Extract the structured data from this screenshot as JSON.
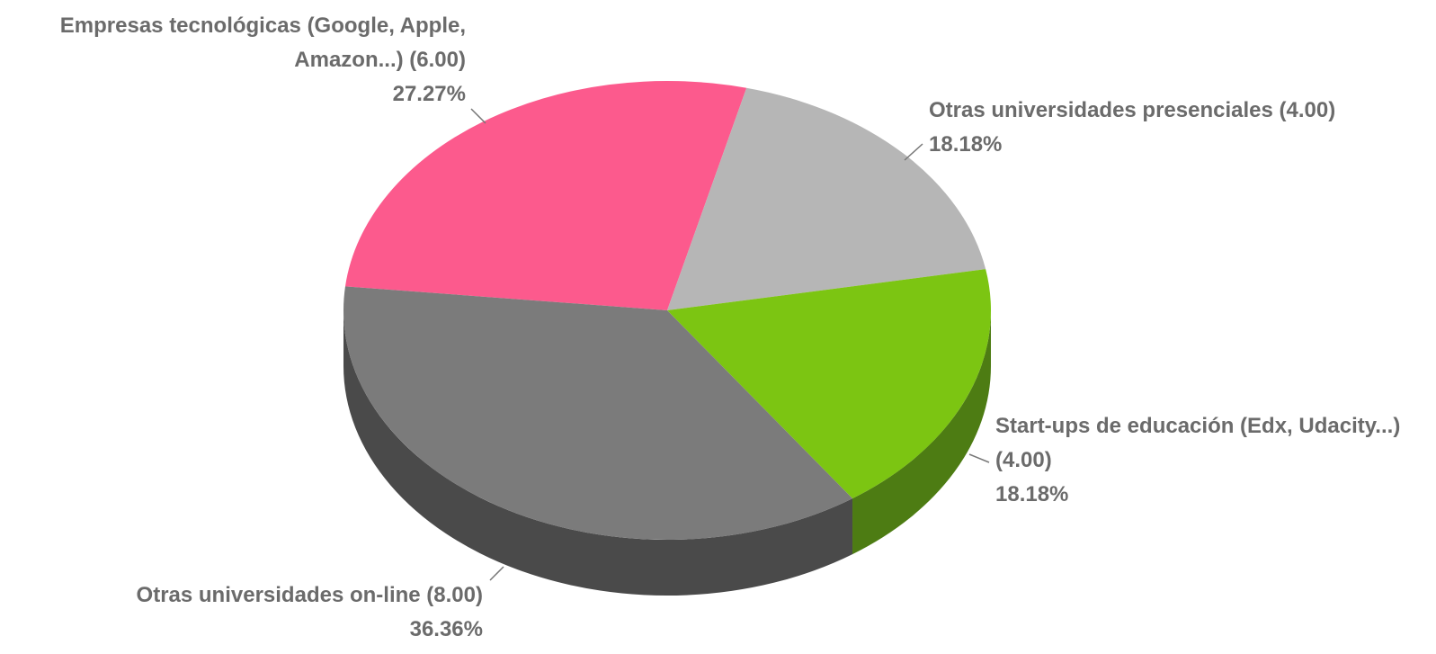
{
  "chart_data": {
    "type": "pie3d",
    "categories": [
      "Empresas tecnológicas (Google, Apple, Amazon...)",
      "Otras universidades presenciales",
      "Start-ups de educación (Edx, Udacity...)",
      "Otras universidades on-line"
    ],
    "values": [
      6,
      4,
      4,
      8
    ],
    "value_labels": [
      "(6.00)",
      "(4.00)",
      "(4.00)",
      "(8.00)"
    ],
    "percent_labels": [
      "27.27%",
      "18.18%",
      "18.18%",
      "36.36%"
    ],
    "colors": [
      "#fc5a8d",
      "#b6b6b6",
      "#7cc512",
      "#7b7b7b"
    ],
    "side_colors": [
      "#c93d6c",
      "#8a8a8a",
      "#4d7c13",
      "#4a4a4a"
    ]
  }
}
